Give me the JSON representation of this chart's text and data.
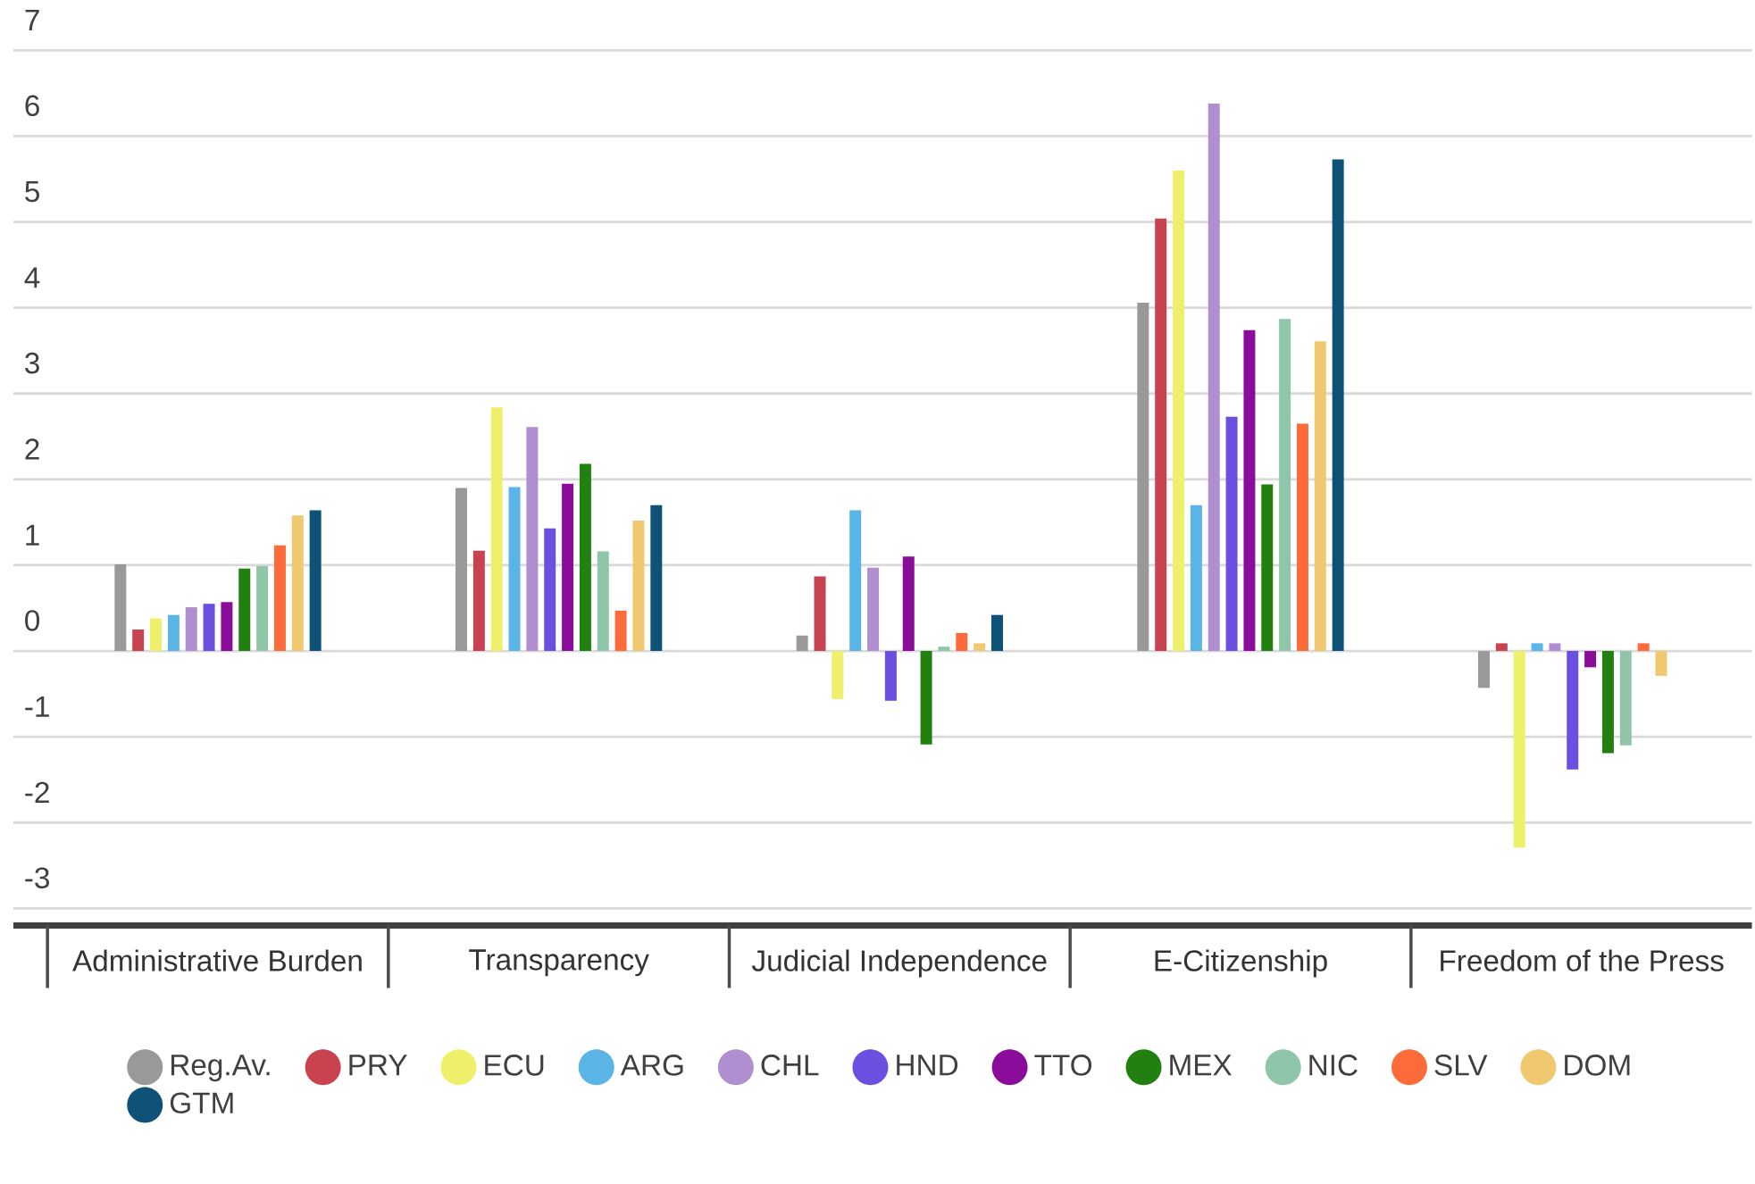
{
  "chart_data": {
    "type": "bar",
    "categories": [
      "Administrative Burden",
      "Transparency",
      "Judicial Independence",
      "E-Citizenship",
      "Freedom of the Press"
    ],
    "ylim": [
      -3.2,
      7
    ],
    "yticks": [
      -3,
      -2,
      -1,
      0,
      1,
      2,
      3,
      4,
      5,
      6,
      7
    ],
    "grid": "y",
    "legend": "bottom",
    "series": [
      {
        "name": "Reg.Av.",
        "color": "#999999",
        "values": [
          1.01,
          1.9,
          0.18,
          4.06,
          -0.43
        ]
      },
      {
        "name": "PRY",
        "color": "#c8424f",
        "values": [
          0.25,
          1.17,
          0.87,
          5.04,
          0.09
        ]
      },
      {
        "name": "ECU",
        "color": "#eef06a",
        "values": [
          0.38,
          2.84,
          -0.56,
          5.6,
          -2.29
        ]
      },
      {
        "name": "ARG",
        "color": "#5ab4e5",
        "values": [
          0.42,
          1.91,
          1.64,
          1.7,
          0.09
        ]
      },
      {
        "name": "CHL",
        "color": "#b08fd0",
        "values": [
          0.51,
          2.61,
          0.97,
          6.38,
          0.09
        ]
      },
      {
        "name": "HND",
        "color": "#6a4fe0",
        "values": [
          0.55,
          1.43,
          -0.58,
          2.73,
          -1.38
        ]
      },
      {
        "name": "TTO",
        "color": "#8a0c9a",
        "values": [
          0.57,
          1.95,
          1.1,
          3.74,
          -0.19
        ]
      },
      {
        "name": "MEX",
        "color": "#21800f",
        "values": [
          0.96,
          2.18,
          -1.09,
          1.94,
          -1.19
        ]
      },
      {
        "name": "NIC",
        "color": "#8fc5a8",
        "values": [
          0.99,
          1.16,
          0.05,
          3.87,
          -1.1
        ]
      },
      {
        "name": "SLV",
        "color": "#fd6b3a",
        "values": [
          1.23,
          0.47,
          0.21,
          2.65,
          0.09
        ]
      },
      {
        "name": "DOM",
        "color": "#f0c870",
        "values": [
          1.58,
          1.52,
          0.09,
          3.61,
          -0.29
        ]
      },
      {
        "name": "GTM",
        "color": "#0f5278",
        "values": [
          1.64,
          1.7,
          0.42,
          5.73,
          null
        ]
      }
    ]
  }
}
